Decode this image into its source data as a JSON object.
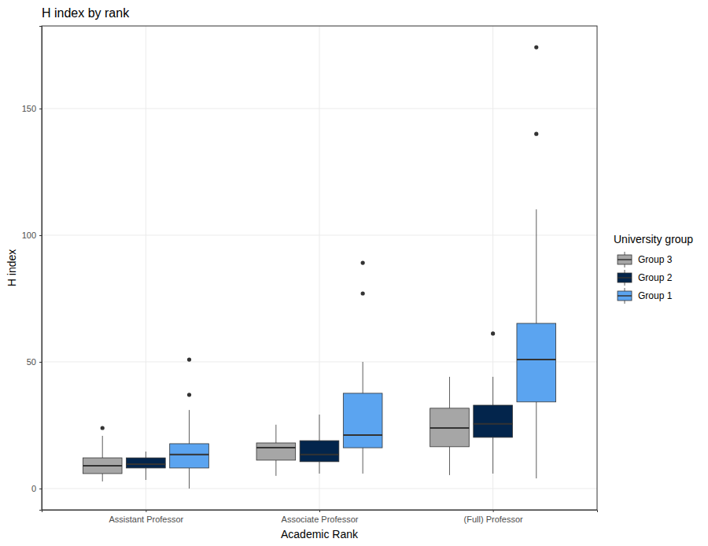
{
  "chart_data": {
    "type": "box",
    "title": "H index by rank",
    "x_label": "Academic Rank",
    "y_label": "H index",
    "legend_title": "University group",
    "legend": "right",
    "grid": true,
    "categories": [
      "Assistant Professor",
      "Associate Professor",
      "(Full) Professor"
    ],
    "ylim": [
      -8.4,
      182.6
    ],
    "yticks": [
      0,
      50,
      100,
      150
    ],
    "series": [
      {
        "name": "Group 3",
        "color": "#a6a6a6",
        "values": [
          {
            "min": 2.8,
            "q1": 5.9,
            "median": 9,
            "q3": 12.1,
            "max": 20.8,
            "outliers": [
              23.9
            ]
          },
          {
            "min": 5,
            "q1": 11.2,
            "median": 16.1,
            "q3": 18,
            "max": 25.2,
            "outliers": []
          },
          {
            "min": 5.3,
            "q1": 16.5,
            "median": 23.9,
            "q3": 31.7,
            "max": 44.1,
            "outliers": []
          }
        ]
      },
      {
        "name": "Group 2",
        "color": "#03254c",
        "values": [
          {
            "min": 3.4,
            "q1": 8.1,
            "median": 9.6,
            "q3": 12.1,
            "max": 14.6,
            "outliers": []
          },
          {
            "min": 5.9,
            "q1": 10.6,
            "median": 13.4,
            "q3": 18.9,
            "max": 29.2,
            "outliers": []
          },
          {
            "min": 5.9,
            "q1": 20.2,
            "median": 25.5,
            "q3": 32.9,
            "max": 44.1,
            "outliers": [
              61.2
            ]
          }
        ]
      },
      {
        "name": "Group 1",
        "color": "#5ba4f0",
        "values": [
          {
            "min": 0,
            "q1": 8.1,
            "median": 13.4,
            "q3": 17.7,
            "max": 31,
            "outliers": [
              37,
              50.9
            ]
          },
          {
            "min": 5.9,
            "q1": 16.1,
            "median": 21.1,
            "q3": 37.6,
            "max": 50,
            "outliers": [
              77,
              89.1
            ]
          },
          {
            "min": 4,
            "q1": 34.2,
            "median": 50.9,
            "q3": 65.2,
            "max": 110.2,
            "outliers": [
              140,
              174.2
            ]
          }
        ]
      }
    ]
  }
}
